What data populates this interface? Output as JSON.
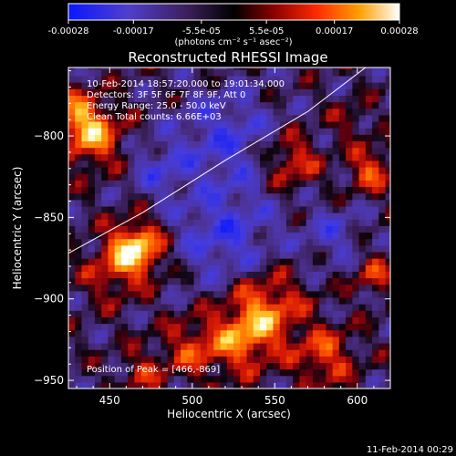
{
  "colorbar": {
    "tick_labels": [
      "-0.00028",
      "-0.00017",
      "-5.5e-05",
      "5.5e-05",
      "0.00017",
      "0.00028"
    ],
    "tick_values": [
      -0.00028,
      -0.00017,
      -5.5e-05,
      5.5e-05,
      0.00017,
      0.00028
    ],
    "range": [
      -0.00028,
      0.00028
    ],
    "unit_label": "(photons cm⁻² s⁻¹ asec⁻²)"
  },
  "chart_data": {
    "type": "heatmap",
    "title": "Reconstructed RHESSI Image",
    "xlabel": "Heliocentric X (arcsec)",
    "ylabel": "Heliocentric Y (arcsec)",
    "xlim": [
      425,
      620
    ],
    "ylim": [
      -955,
      -758
    ],
    "x_ticks": [
      450,
      500,
      550,
      600
    ],
    "y_ticks": [
      -800,
      -850,
      -900,
      -950
    ],
    "x_tick_labels": [
      "450",
      "500",
      "550",
      "600"
    ],
    "y_tick_labels": [
      "−800",
      "−850",
      "−900",
      "−950"
    ],
    "annotations": [
      "10-Feb-2014 18:57:20.000 to 19:01:34.000",
      "Detectors: 3F 5F 6F 7F 8F 9F, Att 0",
      "Energy Range: 25.0 - 50.0 keV",
      "Clean    Total counts: 6.66E+03"
    ],
    "peak_label": "Position of Peak = [466,-869]",
    "peak": [
      466,
      -869
    ],
    "limb_curve": [
      [
        425,
        -872
      ],
      [
        470,
        -847
      ],
      [
        520,
        -815
      ],
      [
        570,
        -785
      ],
      [
        605,
        -758
      ]
    ]
  },
  "footer": {
    "timestamp": "11-Feb-2014 00:29"
  }
}
